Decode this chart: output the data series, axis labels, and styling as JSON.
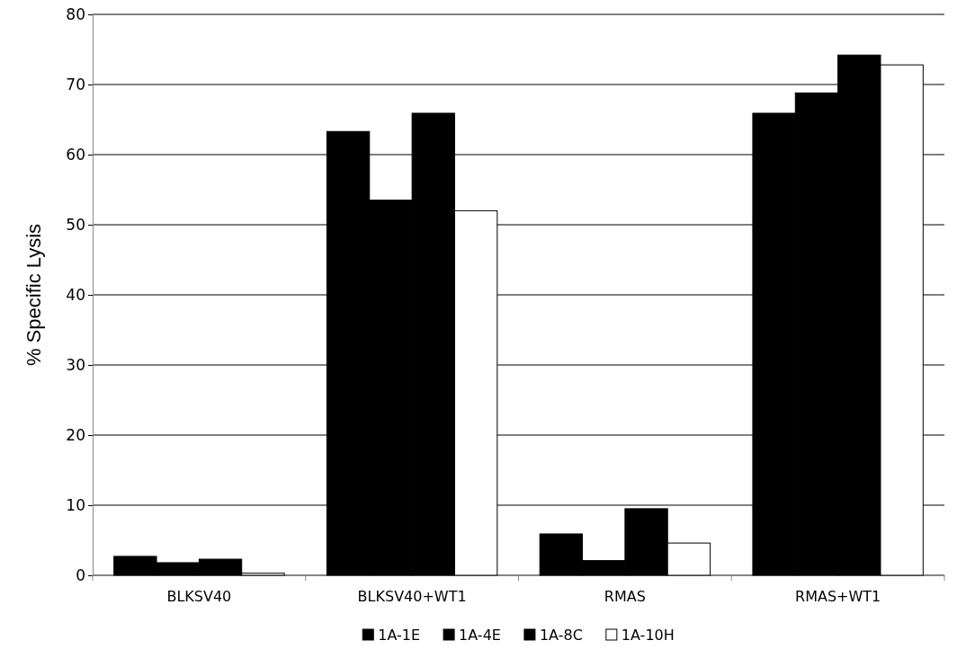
{
  "chart_data": {
    "type": "bar",
    "ylabel": "% Specific Lysis",
    "categories": [
      "BLKSV40",
      "BLKSV40+WT1",
      "RMAS",
      "RMAS+WT1"
    ],
    "series": [
      {
        "name": "1A-1E",
        "color": "#000000",
        "values": [
          2.7,
          63.3,
          5.9,
          65.9
        ]
      },
      {
        "name": "1A-4E",
        "color": "#000000",
        "values": [
          1.8,
          53.5,
          2.1,
          68.8
        ]
      },
      {
        "name": "1A-8C",
        "color": "#000000",
        "values": [
          2.3,
          65.9,
          9.5,
          74.2
        ]
      },
      {
        "name": "1A-10H",
        "color": "#ffffff",
        "values": [
          0.3,
          52.0,
          4.6,
          72.8
        ]
      }
    ],
    "ylim": [
      0,
      80
    ],
    "yticks": [
      0,
      10,
      20,
      30,
      40,
      50,
      60,
      70,
      80
    ],
    "grid": "y",
    "legend": "bottom"
  }
}
